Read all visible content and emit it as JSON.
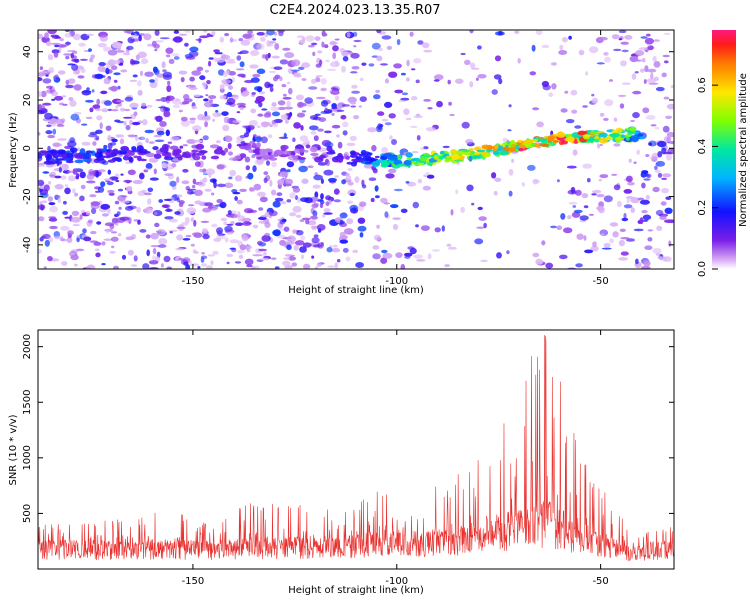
{
  "title": "C2E4.2024.023.13.35.R07",
  "chart_data": [
    {
      "type": "heatmap",
      "xlabel": "Height of straight line (km)",
      "ylabel": "Frequency (Hz)",
      "xlim": [
        -188,
        -32
      ],
      "ylim": [
        -50,
        49
      ],
      "x_ticks": [
        -150,
        -100,
        -50
      ],
      "y_ticks": [
        -40,
        -20,
        0,
        20,
        40
      ],
      "colorbar": {
        "label": "Normalized spectral amplitude",
        "range": [
          0,
          0.78
        ],
        "ticks": [
          0.0,
          0.2,
          0.4,
          0.6
        ],
        "tick_labels": [
          "0.0",
          "0.2",
          "0.4",
          "0.6"
        ]
      },
      "ridge": {
        "description_x": [
          -188,
          -175,
          -160,
          -140,
          -120,
          -110,
          -100,
          -90,
          -80,
          -70,
          -60,
          -50,
          -40
        ],
        "frequency_hz": [
          -4,
          -3,
          -2,
          -1,
          -2,
          -4,
          -5,
          -4,
          -2,
          1,
          4,
          5,
          6
        ],
        "amplitude": [
          0.2,
          0.25,
          0.15,
          0.1,
          0.1,
          0.2,
          0.45,
          0.55,
          0.6,
          0.75,
          0.8,
          0.7,
          0.4
        ]
      },
      "grid": false
    },
    {
      "type": "line",
      "xlabel": "Height of straight line (km)",
      "ylabel": "SNR (10 * v/v)",
      "xlim": [
        -188,
        -32
      ],
      "ylim": [
        0,
        2150
      ],
      "x_ticks": [
        -150,
        -100,
        -50
      ],
      "y_ticks": [
        500,
        1000,
        1500,
        2000
      ],
      "series_color": "#e8302e",
      "envelope": {
        "x": [
          -188,
          -170,
          -160,
          -145,
          -135,
          -120,
          -110,
          -103,
          -95,
          -85,
          -80,
          -75,
          -70,
          -66,
          -63,
          -60,
          -57,
          -52,
          -48,
          -45,
          -42,
          -38,
          -32
        ],
        "peak": [
          400,
          450,
          560,
          430,
          620,
          560,
          590,
          780,
          640,
          880,
          1050,
          1500,
          1650,
          2000,
          2150,
          1750,
          1280,
          800,
          680,
          480,
          320,
          350,
          400
        ],
        "baseline": [
          200,
          200,
          210,
          200,
          220,
          230,
          240,
          280,
          270,
          300,
          350,
          400,
          420,
          460,
          480,
          420,
          360,
          290,
          250,
          180,
          170,
          190,
          200
        ]
      },
      "grid": false
    }
  ]
}
